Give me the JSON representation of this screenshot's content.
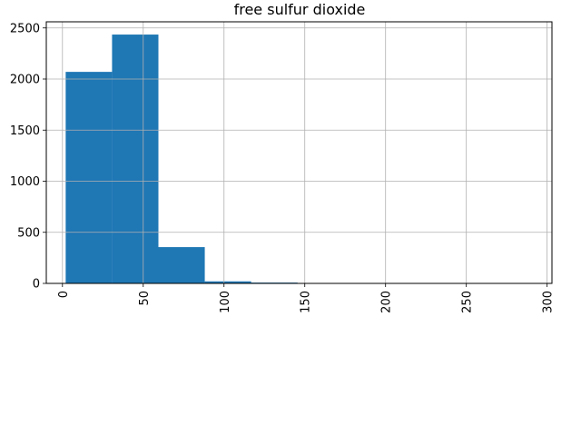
{
  "chart_data": {
    "type": "bar",
    "title": "free sulfur dioxide",
    "xlabel": "",
    "ylabel": "",
    "xlim": [
      -10,
      303
    ],
    "ylim": [
      0,
      2560
    ],
    "xticks": [
      0,
      50,
      100,
      150,
      200,
      250,
      300
    ],
    "xtick_labels": [
      "0",
      "50",
      "100",
      "150",
      "200",
      "250",
      "300"
    ],
    "yticks": [
      0,
      500,
      1000,
      1500,
      2000,
      2500
    ],
    "ytick_labels": [
      "0",
      "500",
      "1000",
      "1500",
      "2000",
      "2500"
    ],
    "x_tick_rotation": "vertical",
    "grid": true,
    "legend": "none",
    "bin_edges": [
      2,
      30.7,
      59.4,
      88.1,
      116.8,
      145.5,
      174.2,
      202.9,
      231.6,
      260.3,
      289
    ],
    "values": [
      2070,
      2435,
      355,
      20,
      8,
      2,
      1,
      0,
      0,
      1
    ],
    "bar_color": "#1f77b4"
  }
}
